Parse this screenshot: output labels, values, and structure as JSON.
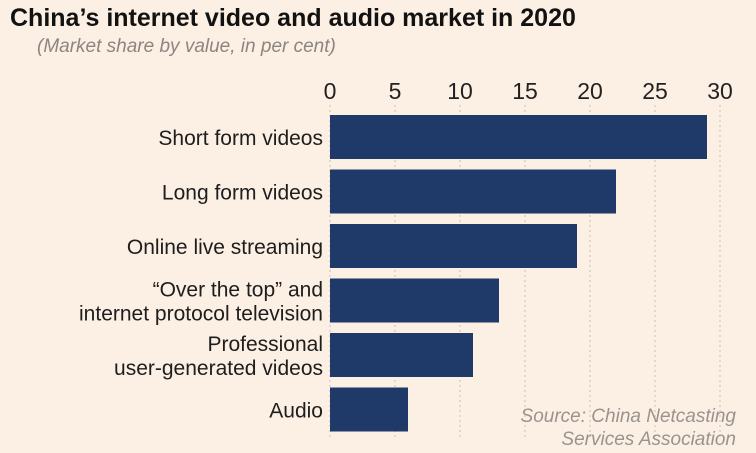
{
  "title": "China’s internet video and audio market in 2020",
  "subtitle": "(Market share by value, in per cent)",
  "source_lines": [
    "Source: China Netcasting",
    "Services Association"
  ],
  "colors": {
    "bar": "#1f3a68",
    "background": "#fcefe3",
    "grid": "#c9bfb6"
  },
  "chart_data": {
    "type": "bar",
    "orientation": "horizontal",
    "title": "China’s internet video and audio market in 2020",
    "subtitle": "(Market share by value, in per cent)",
    "categories": [
      [
        "Short form videos"
      ],
      [
        "Long form videos"
      ],
      [
        "Online live streaming"
      ],
      [
        "“Over the top” and",
        "internet protocol television"
      ],
      [
        "Professional",
        "user-generated videos"
      ],
      [
        "Audio"
      ]
    ],
    "values": [
      29,
      22,
      19,
      13,
      11,
      6
    ],
    "xlim": [
      0,
      30
    ],
    "ticks": [
      0,
      5,
      10,
      15,
      20,
      25,
      30
    ],
    "tick_position": "top",
    "grid": "vertical-dotted"
  }
}
